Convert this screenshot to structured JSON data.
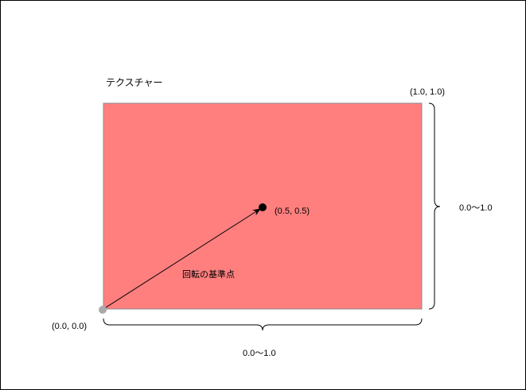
{
  "diagram": {
    "texture_label": "テクスチャー",
    "corner_top_right_label": "(1.0, 1.0)",
    "corner_origin_label": "(0.0, 0.0)",
    "center_point_label": "(0.5, 0.5)",
    "vertical_range_label": "0.0～1.0",
    "horizontal_range_label": "0.0～1.0",
    "arrow_label": "回転の基準点",
    "colors": {
      "texture_fill": "#FF7F7F",
      "texture_stroke": "#888888",
      "origin_point": "#AAAAAA",
      "center_point": "#000000",
      "line": "#000000"
    }
  }
}
